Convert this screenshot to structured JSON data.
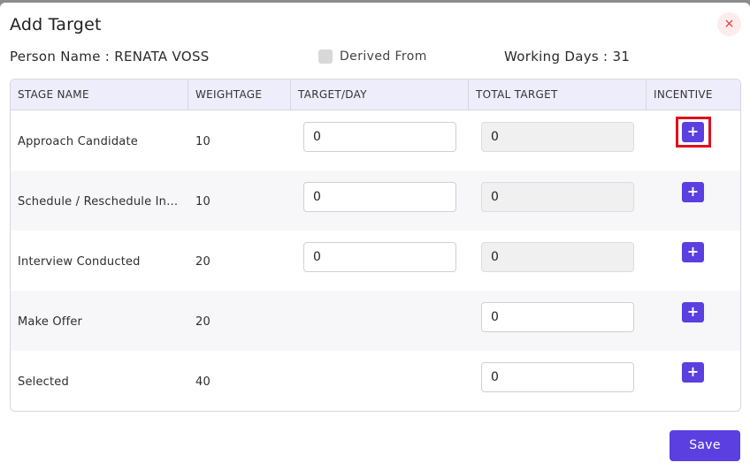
{
  "modal": {
    "title": "Add Target",
    "close_icon": "×"
  },
  "info": {
    "person_name": "Person Name : RENATA VOSS",
    "derived_from_label": "Derived From",
    "derived_from_checked": false,
    "working_days": "Working Days : 31"
  },
  "table": {
    "headers": [
      "STAGE NAME",
      "WEIGHTAGE",
      "TARGET/DAY",
      "TOTAL TARGET",
      "INCENTIVE"
    ],
    "rows": [
      {
        "stage": "Approach Candidate",
        "weightage": "10",
        "target_day": "0",
        "total_target": "0",
        "total_readonly": true
      },
      {
        "stage": "Schedule / Reschedule Interview",
        "weightage": "10",
        "target_day": "0",
        "total_target": "0",
        "total_readonly": true
      },
      {
        "stage": "Interview Conducted",
        "weightage": "20",
        "target_day": "0",
        "total_target": "0",
        "total_readonly": true
      },
      {
        "stage": "Make Offer",
        "weightage": "20",
        "target_day": null,
        "total_target": "0",
        "total_readonly": false
      },
      {
        "stage": "Selected",
        "weightage": "40",
        "target_day": null,
        "total_target": "0",
        "total_readonly": false
      }
    ],
    "incentive_icon": "+"
  },
  "footer": {
    "save_label": "Save"
  },
  "colors": {
    "accent": "#5b3fe0",
    "highlight": "#e0101e",
    "header_bg": "#eeedfb"
  }
}
